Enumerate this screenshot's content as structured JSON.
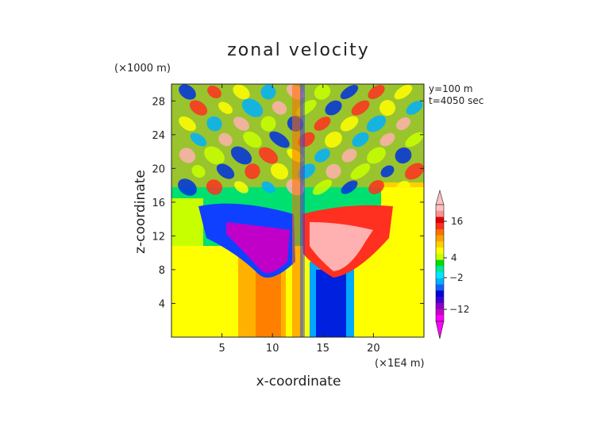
{
  "chart_data": {
    "type": "heatmap",
    "title": "zonal velocity",
    "xlabel": "x-coordinate",
    "ylabel": "z-coordinate",
    "x_unit": "(×1E4 m)",
    "y_unit": "(×1000 m)",
    "annotations": [
      "y=100 m",
      "t=4050 sec"
    ],
    "x_ticks": [
      5,
      10,
      15,
      20
    ],
    "y_ticks": [
      4,
      8,
      12,
      16,
      20,
      24,
      28
    ],
    "xlim": [
      0,
      25
    ],
    "ylim": [
      0,
      30
    ],
    "colorbar": {
      "labels": [
        16,
        4,
        -2,
        -12
      ],
      "extend": "both",
      "colors": [
        "#ff00ff",
        "#c800c8",
        "#8c00c8",
        "#3c00d0",
        "#0000d8",
        "#1060ff",
        "#00b0ff",
        "#00e8ff",
        "#00e8a0",
        "#00e000",
        "#c8ff00",
        "#ffff00",
        "#ffd000",
        "#ffa000",
        "#ff7000",
        "#ff3020",
        "#e00000",
        "#ff9090",
        "#ffc0c0"
      ]
    },
    "grid": false,
    "legend_position": "right"
  }
}
